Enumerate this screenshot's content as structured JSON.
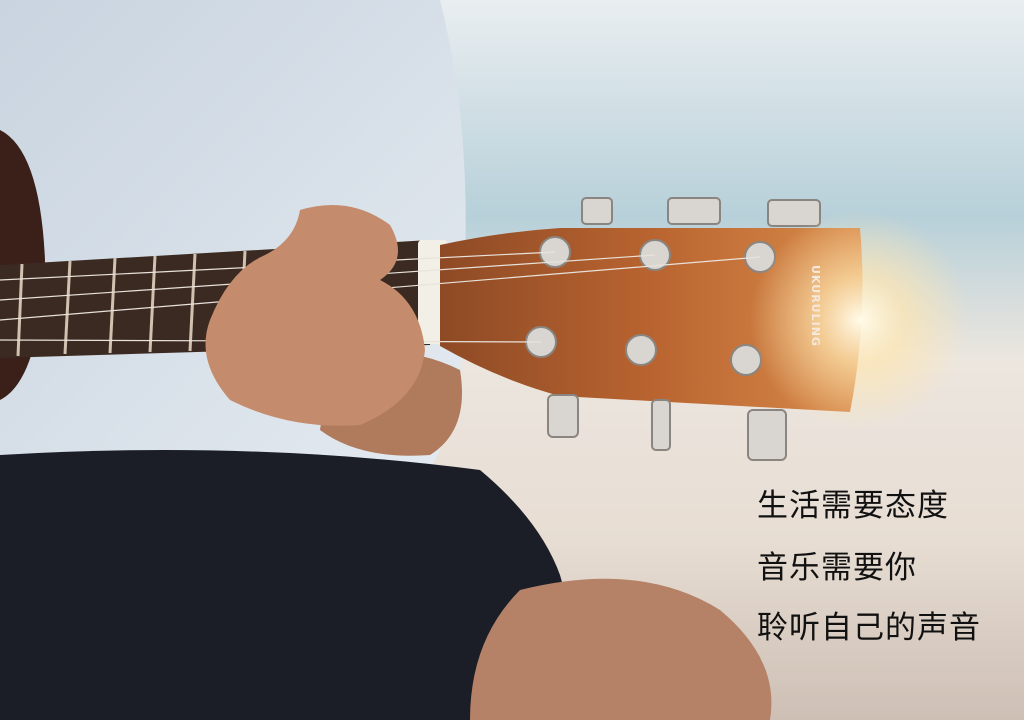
{
  "brand": "UKURULING",
  "caption": {
    "lines": [
      "生活需要态度",
      "音乐需要你",
      "聆听自己的声音"
    ]
  }
}
